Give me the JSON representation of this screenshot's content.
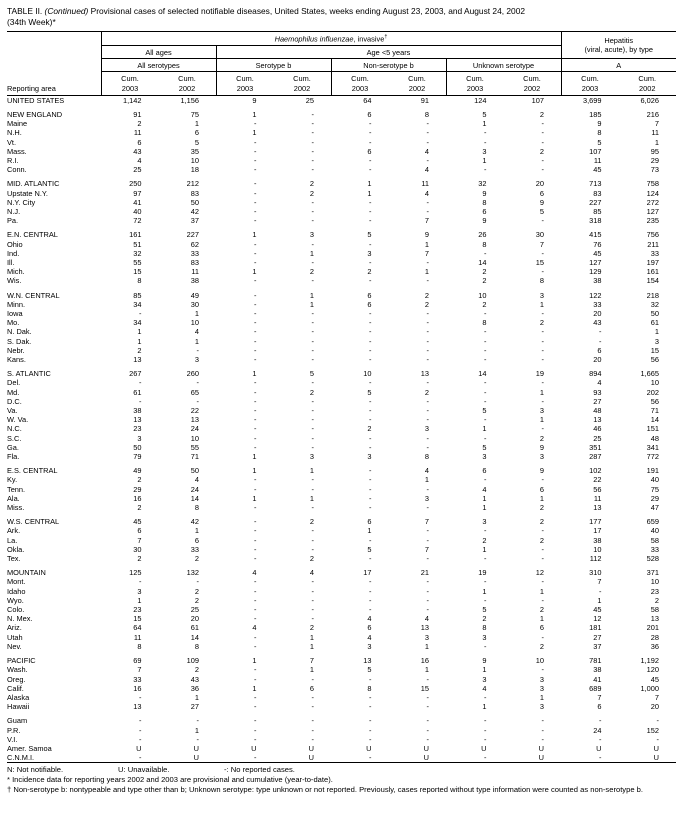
{
  "title": {
    "prefix": "TABLE II.",
    "continued": "(Continued)",
    "rest": "Provisional cases of selected notifiable diseases, United States, weeks ending August 23, 2003, and August 24, 2002",
    "line2": "(34th Week)*"
  },
  "header": {
    "reporting_area": "Reporting area",
    "hib_italic": "Haemophilus influenzae",
    "hib_rest": ", invasive",
    "hib_dagger": "†",
    "hepatitis_line1": "Hepatitis",
    "hepatitis_line2": "(viral, acute), by type",
    "all_ages": "All ages",
    "age_under_5": "Age <5 years",
    "all_serotypes": "All serotypes",
    "serotype_b": "Serotype b",
    "non_serotype_b": "Non-serotype b",
    "unknown_serotype": "Unknown serotype",
    "type_a": "A",
    "cum_label": "Cum.",
    "years": [
      "2003",
      "2002",
      "2003",
      "2002",
      "2003",
      "2002",
      "2003",
      "2002",
      "2003",
      "2002"
    ]
  },
  "groups": [
    {
      "name": "united-states",
      "rows": [
        [
          "UNITED STATES",
          "1,142",
          "1,156",
          "9",
          "25",
          "64",
          "91",
          "124",
          "107",
          "3,699",
          "6,026"
        ]
      ]
    },
    {
      "name": "new-england",
      "rows": [
        [
          "NEW ENGLAND",
          "91",
          "75",
          "1",
          "-",
          "6",
          "8",
          "5",
          "2",
          "185",
          "216"
        ],
        [
          "Maine",
          "2",
          "1",
          "-",
          "-",
          "-",
          "-",
          "1",
          "-",
          "9",
          "7"
        ],
        [
          "N.H.",
          "11",
          "6",
          "1",
          "-",
          "-",
          "-",
          "-",
          "-",
          "8",
          "11"
        ],
        [
          "Vt.",
          "6",
          "5",
          "-",
          "-",
          "-",
          "-",
          "-",
          "-",
          "5",
          "1"
        ],
        [
          "Mass.",
          "43",
          "35",
          "-",
          "-",
          "6",
          "4",
          "3",
          "2",
          "107",
          "95"
        ],
        [
          "R.I.",
          "4",
          "10",
          "-",
          "-",
          "-",
          "-",
          "1",
          "-",
          "11",
          "29"
        ],
        [
          "Conn.",
          "25",
          "18",
          "-",
          "-",
          "-",
          "4",
          "-",
          "-",
          "45",
          "73"
        ]
      ]
    },
    {
      "name": "mid-atlantic",
      "rows": [
        [
          "MID. ATLANTIC",
          "250",
          "212",
          "-",
          "2",
          "1",
          "11",
          "32",
          "20",
          "713",
          "758"
        ],
        [
          "Upstate N.Y.",
          "97",
          "83",
          "-",
          "2",
          "1",
          "4",
          "9",
          "6",
          "83",
          "124"
        ],
        [
          "N.Y. City",
          "41",
          "50",
          "-",
          "-",
          "-",
          "-",
          "8",
          "9",
          "227",
          "272"
        ],
        [
          "N.J.",
          "40",
          "42",
          "-",
          "-",
          "-",
          "-",
          "6",
          "5",
          "85",
          "127"
        ],
        [
          "Pa.",
          "72",
          "37",
          "-",
          "-",
          "-",
          "7",
          "9",
          "-",
          "318",
          "235"
        ]
      ]
    },
    {
      "name": "en-central",
      "rows": [
        [
          "E.N. CENTRAL",
          "161",
          "227",
          "1",
          "3",
          "5",
          "9",
          "26",
          "30",
          "415",
          "756"
        ],
        [
          "Ohio",
          "51",
          "62",
          "-",
          "-",
          "-",
          "1",
          "8",
          "7",
          "76",
          "211"
        ],
        [
          "Ind.",
          "32",
          "33",
          "-",
          "1",
          "3",
          "7",
          "-",
          "-",
          "45",
          "33"
        ],
        [
          "Ill.",
          "55",
          "83",
          "-",
          "-",
          "-",
          "-",
          "14",
          "15",
          "127",
          "197"
        ],
        [
          "Mich.",
          "15",
          "11",
          "1",
          "2",
          "2",
          "1",
          "2",
          "-",
          "129",
          "161"
        ],
        [
          "Wis.",
          "8",
          "38",
          "-",
          "-",
          "-",
          "-",
          "2",
          "8",
          "38",
          "154"
        ]
      ]
    },
    {
      "name": "wn-central",
      "rows": [
        [
          "W.N. CENTRAL",
          "85",
          "49",
          "-",
          "1",
          "6",
          "2",
          "10",
          "3",
          "122",
          "218"
        ],
        [
          "Minn.",
          "34",
          "30",
          "-",
          "1",
          "6",
          "2",
          "2",
          "1",
          "33",
          "32"
        ],
        [
          "Iowa",
          "-",
          "1",
          "-",
          "-",
          "-",
          "-",
          "-",
          "-",
          "20",
          "50"
        ],
        [
          "Mo.",
          "34",
          "10",
          "-",
          "-",
          "-",
          "-",
          "8",
          "2",
          "43",
          "61"
        ],
        [
          "N. Dak.",
          "1",
          "4",
          "-",
          "-",
          "-",
          "-",
          "-",
          "-",
          "-",
          "1"
        ],
        [
          "S. Dak.",
          "1",
          "1",
          "-",
          "-",
          "-",
          "-",
          "-",
          "-",
          "-",
          "3"
        ],
        [
          "Nebr.",
          "2",
          "-",
          "-",
          "-",
          "-",
          "-",
          "-",
          "-",
          "6",
          "15"
        ],
        [
          "Kans.",
          "13",
          "3",
          "-",
          "-",
          "-",
          "-",
          "-",
          "-",
          "20",
          "56"
        ]
      ]
    },
    {
      "name": "s-atlantic",
      "rows": [
        [
          "S. ATLANTIC",
          "267",
          "260",
          "1",
          "5",
          "10",
          "13",
          "14",
          "19",
          "894",
          "1,665"
        ],
        [
          "Del.",
          "-",
          "-",
          "-",
          "-",
          "-",
          "-",
          "-",
          "-",
          "4",
          "10"
        ],
        [
          "Md.",
          "61",
          "65",
          "-",
          "2",
          "5",
          "2",
          "-",
          "1",
          "93",
          "202"
        ],
        [
          "D.C.",
          "-",
          "-",
          "-",
          "-",
          "-",
          "-",
          "-",
          "-",
          "27",
          "56"
        ],
        [
          "Va.",
          "38",
          "22",
          "-",
          "-",
          "-",
          "-",
          "5",
          "3",
          "48",
          "71"
        ],
        [
          "W. Va.",
          "13",
          "13",
          "-",
          "-",
          "-",
          "-",
          "-",
          "1",
          "13",
          "14"
        ],
        [
          "N.C.",
          "23",
          "24",
          "-",
          "-",
          "2",
          "3",
          "1",
          "-",
          "46",
          "151"
        ],
        [
          "S.C.",
          "3",
          "10",
          "-",
          "-",
          "-",
          "-",
          "-",
          "2",
          "25",
          "48"
        ],
        [
          "Ga.",
          "50",
          "55",
          "-",
          "-",
          "-",
          "-",
          "5",
          "9",
          "351",
          "341"
        ],
        [
          "Fla.",
          "79",
          "71",
          "1",
          "3",
          "3",
          "8",
          "3",
          "3",
          "287",
          "772"
        ]
      ]
    },
    {
      "name": "es-central",
      "rows": [
        [
          "E.S. CENTRAL",
          "49",
          "50",
          "1",
          "1",
          "-",
          "4",
          "6",
          "9",
          "102",
          "191"
        ],
        [
          "Ky.",
          "2",
          "4",
          "-",
          "-",
          "-",
          "1",
          "-",
          "-",
          "22",
          "40"
        ],
        [
          "Tenn.",
          "29",
          "24",
          "-",
          "-",
          "-",
          "-",
          "4",
          "6",
          "56",
          "75"
        ],
        [
          "Ala.",
          "16",
          "14",
          "1",
          "1",
          "-",
          "3",
          "1",
          "1",
          "11",
          "29"
        ],
        [
          "Miss.",
          "2",
          "8",
          "-",
          "-",
          "-",
          "-",
          "1",
          "2",
          "13",
          "47"
        ]
      ]
    },
    {
      "name": "ws-central",
      "rows": [
        [
          "W.S. CENTRAL",
          "45",
          "42",
          "-",
          "2",
          "6",
          "7",
          "3",
          "2",
          "177",
          "659"
        ],
        [
          "Ark.",
          "6",
          "1",
          "-",
          "-",
          "1",
          "-",
          "-",
          "-",
          "17",
          "40"
        ],
        [
          "La.",
          "7",
          "6",
          "-",
          "-",
          "-",
          "-",
          "2",
          "2",
          "38",
          "58"
        ],
        [
          "Okla.",
          "30",
          "33",
          "-",
          "-",
          "5",
          "7",
          "1",
          "-",
          "10",
          "33"
        ],
        [
          "Tex.",
          "2",
          "2",
          "-",
          "2",
          "-",
          "-",
          "-",
          "-",
          "112",
          "528"
        ]
      ]
    },
    {
      "name": "mountain",
      "rows": [
        [
          "MOUNTAIN",
          "125",
          "132",
          "4",
          "4",
          "17",
          "21",
          "19",
          "12",
          "310",
          "371"
        ],
        [
          "Mont.",
          "-",
          "-",
          "-",
          "-",
          "-",
          "-",
          "-",
          "-",
          "7",
          "10"
        ],
        [
          "Idaho",
          "3",
          "2",
          "-",
          "-",
          "-",
          "-",
          "1",
          "1",
          "-",
          "23"
        ],
        [
          "Wyo.",
          "1",
          "2",
          "-",
          "-",
          "-",
          "-",
          "-",
          "-",
          "1",
          "2"
        ],
        [
          "Colo.",
          "23",
          "25",
          "-",
          "-",
          "-",
          "-",
          "5",
          "2",
          "45",
          "58"
        ],
        [
          "N. Mex.",
          "15",
          "20",
          "-",
          "-",
          "4",
          "4",
          "2",
          "1",
          "12",
          "13"
        ],
        [
          "Ariz.",
          "64",
          "61",
          "4",
          "2",
          "6",
          "13",
          "8",
          "6",
          "181",
          "201"
        ],
        [
          "Utah",
          "11",
          "14",
          "-",
          "1",
          "4",
          "3",
          "3",
          "-",
          "27",
          "28"
        ],
        [
          "Nev.",
          "8",
          "8",
          "-",
          "1",
          "3",
          "1",
          "-",
          "2",
          "37",
          "36"
        ]
      ]
    },
    {
      "name": "pacific",
      "rows": [
        [
          "PACIFIC",
          "69",
          "109",
          "1",
          "7",
          "13",
          "16",
          "9",
          "10",
          "781",
          "1,192"
        ],
        [
          "Wash.",
          "7",
          "2",
          "-",
          "1",
          "5",
          "1",
          "1",
          "-",
          "38",
          "120"
        ],
        [
          "Oreg.",
          "33",
          "43",
          "-",
          "-",
          "-",
          "-",
          "3",
          "3",
          "41",
          "45"
        ],
        [
          "Calif.",
          "16",
          "36",
          "1",
          "6",
          "8",
          "15",
          "4",
          "3",
          "689",
          "1,000"
        ],
        [
          "Alaska",
          "-",
          "1",
          "-",
          "-",
          "-",
          "-",
          "-",
          "1",
          "7",
          "7"
        ],
        [
          "Hawaii",
          "13",
          "27",
          "-",
          "-",
          "-",
          "-",
          "1",
          "3",
          "6",
          "20"
        ]
      ]
    },
    {
      "name": "territories",
      "rows": [
        [
          "Guam",
          "-",
          "-",
          "-",
          "-",
          "-",
          "-",
          "-",
          "-",
          "-",
          "-"
        ],
        [
          "P.R.",
          "-",
          "1",
          "-",
          "-",
          "-",
          "-",
          "-",
          "-",
          "24",
          "152"
        ],
        [
          "V.I.",
          "-",
          "-",
          "-",
          "-",
          "-",
          "-",
          "-",
          "-",
          "-",
          "-"
        ],
        [
          "Amer. Samoa",
          "U",
          "U",
          "U",
          "U",
          "U",
          "U",
          "U",
          "U",
          "U",
          "U"
        ],
        [
          "C.N.M.I.",
          "-",
          "U",
          "-",
          "U",
          "-",
          "U",
          "-",
          "U",
          "-",
          "U"
        ]
      ]
    }
  ],
  "footnotes": {
    "legend_n": "N: Not notifiable.",
    "legend_u": "U: Unavailable.",
    "legend_dash": "-: No reported cases.",
    "star": "* Incidence data for reporting years 2002 and 2003 are provisional and cumulative (year-to-date).",
    "dagger": "† Non-serotype b: nontypeable and type other than b; Unknown serotype: type unknown or not reported. Previously, cases reported without type information were counted as non-serotype b."
  }
}
